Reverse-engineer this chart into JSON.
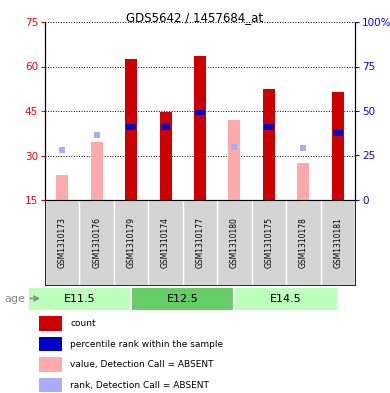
{
  "title": "GDS5642 / 1457684_at",
  "samples": [
    "GSM1310173",
    "GSM1310176",
    "GSM1310179",
    "GSM1310174",
    "GSM1310177",
    "GSM1310180",
    "GSM1310175",
    "GSM1310178",
    "GSM1310181"
  ],
  "age_groups": [
    {
      "label": "E11.5",
      "start": 0,
      "end": 3
    },
    {
      "label": "E12.5",
      "start": 3,
      "end": 6
    },
    {
      "label": "E14.5",
      "start": 6,
      "end": 9
    }
  ],
  "count_values": [
    null,
    null,
    62.5,
    44.5,
    63.5,
    null,
    52.5,
    null,
    51.5
  ],
  "percentile_values": [
    null,
    null,
    38.5,
    38.5,
    43.5,
    null,
    38.5,
    null,
    36.5
  ],
  "absent_value_values": [
    23.5,
    34.5,
    null,
    null,
    null,
    42.0,
    null,
    27.5,
    null
  ],
  "absent_rank_values": [
    32.0,
    37.0,
    null,
    null,
    null,
    33.0,
    null,
    32.5,
    null
  ],
  "ylim": [
    15,
    75
  ],
  "yticks_left": [
    15,
    30,
    45,
    60,
    75
  ],
  "yticks_right_labels": [
    "0",
    "25",
    "50",
    "75",
    "100%"
  ],
  "bar_width": 0.35,
  "count_color": "#cc0000",
  "percentile_color": "#0000cc",
  "absent_value_color": "#ffaaaa",
  "absent_rank_color": "#aaaaff",
  "age_color_light": "#bbffbb",
  "age_color_dark": "#66cc66",
  "sample_bg": "#d8d8d8",
  "legend_items": [
    {
      "color": "#cc0000",
      "label": "count"
    },
    {
      "color": "#0000cc",
      "label": "percentile rank within the sample"
    },
    {
      "color": "#ffaaaa",
      "label": "value, Detection Call = ABSENT"
    },
    {
      "color": "#aaaaff",
      "label": "rank, Detection Call = ABSENT"
    }
  ]
}
